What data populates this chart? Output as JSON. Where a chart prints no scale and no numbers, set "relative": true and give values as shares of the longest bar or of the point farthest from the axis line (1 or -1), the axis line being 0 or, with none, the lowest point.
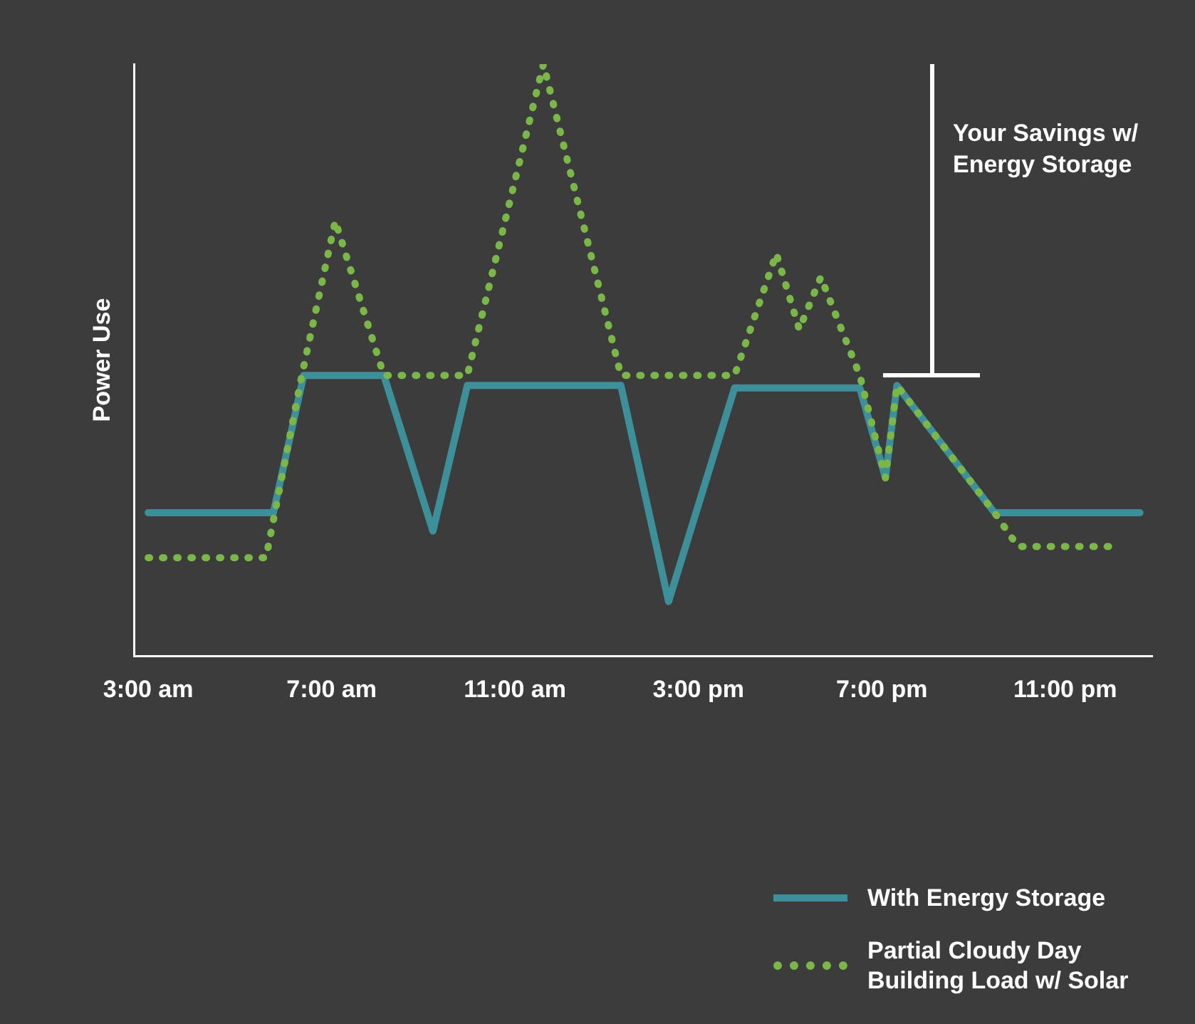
{
  "chart_data": {
    "type": "line",
    "relative": true,
    "ylabel": "Power Use",
    "xlim": [
      2.7,
      24.9
    ],
    "xticks": [
      {
        "value": 3,
        "label": "3:00 am"
      },
      {
        "value": 7,
        "label": "7:00 am"
      },
      {
        "value": 11,
        "label": "11:00 am"
      },
      {
        "value": 15,
        "label": "3:00 pm"
      },
      {
        "value": 19,
        "label": "7:00 pm"
      },
      {
        "value": 23,
        "label": "11:00 pm"
      }
    ],
    "series": [
      {
        "name": "Partial Cloudy Day Building Load w/ Solar",
        "color": "#7ab648",
        "line_style": "dotted",
        "x": [
          3,
          5.57,
          6.35,
          7.08,
          8.14,
          9.96,
          11.62,
          13.31,
          15.79,
          16.7,
          17.2,
          17.67,
          18.52,
          19.08,
          19.33,
          21.46,
          21.97,
          24.16
        ],
        "values": [
          0.166,
          0.166,
          0.474,
          0.735,
          0.474,
          0.474,
          1,
          0.474,
          0.474,
          0.68,
          0.552,
          0.64,
          0.474,
          0.301,
          0.457,
          0.242,
          0.185,
          0.185
        ]
      },
      {
        "name": "With Energy Storage",
        "color": "#3d8f99",
        "line_style": "solid",
        "x": [
          3,
          5.73,
          6.39,
          8.14,
          9.21,
          9.96,
          13.31,
          14.35,
          15.79,
          18.52,
          19.08,
          19.33,
          21.46,
          24.63
        ],
        "values": [
          0.242,
          0.242,
          0.474,
          0.474,
          0.211,
          0.457,
          0.457,
          0.092,
          0.453,
          0.453,
          0.301,
          0.457,
          0.242,
          0.242
        ]
      }
    ],
    "annotations": [
      "Your Savings w/ Energy Storage"
    ],
    "grid": false,
    "marker": "none",
    "legend": "bottom right"
  }
}
